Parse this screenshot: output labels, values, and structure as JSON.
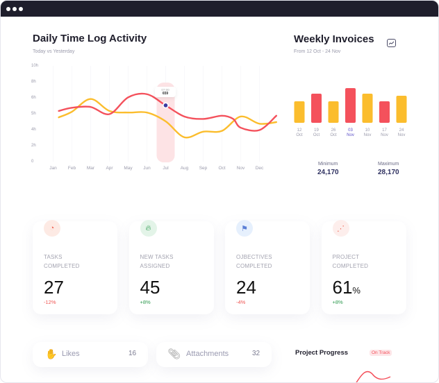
{
  "colors": {
    "red": "#f4515c",
    "yellow": "#fbbd2d",
    "accent": "#5b4fc7",
    "dark": "#1f1e2c"
  },
  "daily": {
    "title": "Daily Time Log Activity",
    "subtitle": "Today vs Yesterday",
    "tooltip": {
      "time": "07:00",
      "value": "659"
    }
  },
  "weekly": {
    "title": "Weekly Invoices",
    "subtitle": "From 12 Oct - 24 Nov",
    "icon": "trend-chart-icon",
    "min_label": "Minimum",
    "min_value": "24,170",
    "max_label": "Maximum",
    "max_value": "28,170"
  },
  "chart_data": [
    {
      "type": "line",
      "title": "Daily Time Log Activity",
      "categories": [
        "Jan",
        "Feb",
        "Mar",
        "Apr",
        "May",
        "Jun",
        "Jul",
        "Aug",
        "Sep",
        "Oct",
        "Nov",
        "Dec"
      ],
      "y_ticks": [
        "0",
        "2h",
        "4h",
        "5h",
        "6h",
        "8h",
        "10h"
      ],
      "ylim": [
        0,
        12
      ],
      "series": [
        {
          "name": "Today",
          "color": "#f4515c",
          "points": [
            [
              0.3,
              6.4
            ],
            [
              1,
              6.8
            ],
            [
              2,
              6.9
            ],
            [
              3,
              6.0
            ],
            [
              4,
              8.1
            ],
            [
              5,
              8.5
            ],
            [
              6,
              7.1
            ],
            [
              7,
              5.7
            ],
            [
              8,
              5.4
            ],
            [
              9,
              5.8
            ],
            [
              9.6,
              5.4
            ],
            [
              10,
              4.3
            ],
            [
              11,
              4.0
            ],
            [
              11.9,
              5.8
            ]
          ]
        },
        {
          "name": "Yesterday",
          "color": "#fbbd2d",
          "points": [
            [
              0.3,
              5.6
            ],
            [
              1,
              6.3
            ],
            [
              2,
              7.9
            ],
            [
              3,
              6.4
            ],
            [
              4,
              6.2
            ],
            [
              5,
              6.2
            ],
            [
              6,
              5.1
            ],
            [
              7,
              3.1
            ],
            [
              8,
              3.8
            ],
            [
              9,
              3.9
            ],
            [
              10,
              5.7
            ],
            [
              11,
              4.8
            ],
            [
              11.9,
              5.0
            ]
          ]
        }
      ],
      "highlight": "Jul"
    },
    {
      "type": "bar",
      "title": "Weekly Invoices",
      "categories": [
        [
          "12",
          "Oct"
        ],
        [
          "19",
          "Oct"
        ],
        [
          "26",
          "Oct"
        ],
        [
          "03",
          "Nov"
        ],
        [
          "10",
          "Nov"
        ],
        [
          "17",
          "Nov"
        ],
        [
          "24",
          "Nov"
        ]
      ],
      "values": [
        62,
        84,
        62,
        100,
        84,
        62,
        78
      ],
      "colors": [
        "#fbbd2d",
        "#f4515c",
        "#fbbd2d",
        "#f4515c",
        "#fbbd2d",
        "#f4515c",
        "#fbbd2d"
      ],
      "selected": "03 Nov"
    }
  ],
  "cards": [
    {
      "l1": "TASKS",
      "l2": "COMPLETED",
      "value": "27",
      "unit": "",
      "delta": "-12%",
      "icon": "pie-chart-icon"
    },
    {
      "l1": "NEW TASKS",
      "l2": "ASSIGNED",
      "value": "45",
      "unit": "",
      "delta": "+8%",
      "icon": "flame-icon"
    },
    {
      "l1": "OJBECTIVES",
      "l2": "COMPLETED",
      "value": "24",
      "unit": "",
      "delta": "-4%",
      "icon": "flag-icon"
    },
    {
      "l1": "PROJECT",
      "l2": "COMPLETED",
      "value": "61",
      "unit": "%",
      "delta": "+8%",
      "icon": "scatter-icon"
    }
  ],
  "likes": {
    "label": "Likes",
    "value": "16"
  },
  "attachments": {
    "label": "Attachments",
    "value": "32"
  },
  "progress": {
    "title": "Project Progress",
    "badge": "On Track"
  }
}
